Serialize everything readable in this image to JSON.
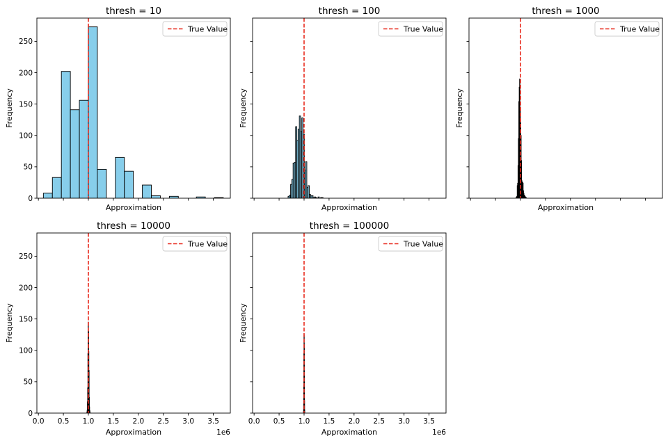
{
  "chart_data": [
    {
      "type": "histogram",
      "title": "thresh = 10",
      "xlabel": "Approximation",
      "ylabel": "Frequency",
      "true_value": 1000000,
      "legend": "True Value",
      "bin_edges": [
        100000,
        280000,
        460000,
        640000,
        820000,
        1000000,
        1180000,
        1360000,
        1540000,
        1720000,
        1900000,
        2080000,
        2260000,
        2440000,
        2620000,
        2800000,
        2980000,
        3160000,
        3340000,
        3520000,
        3700000
      ],
      "counts": [
        8,
        33,
        202,
        141,
        156,
        273,
        46,
        0,
        65,
        43,
        0,
        21,
        4,
        0,
        3,
        0,
        0,
        2,
        0,
        1
      ]
    },
    {
      "type": "histogram",
      "title": "thresh = 100",
      "xlabel": "Approximation",
      "ylabel": "Frequency",
      "true_value": 1000000,
      "legend": "True Value",
      "bin_edges": [
        680000,
        705000,
        730000,
        755000,
        780000,
        805000,
        830000,
        855000,
        880000,
        905000,
        930000,
        955000,
        980000,
        1005000,
        1030000,
        1055000,
        1080000,
        1105000,
        1130000,
        1155000,
        1180000,
        1205000,
        1230000,
        1255000,
        1280000,
        1305000,
        1330000,
        1355000,
        1380000
      ],
      "counts": [
        3,
        5,
        22,
        30,
        56,
        57,
        114,
        92,
        110,
        131,
        106,
        128,
        102,
        45,
        58,
        17,
        20,
        6,
        4,
        4,
        1,
        2,
        1,
        0,
        2,
        0,
        1,
        1
      ]
    },
    {
      "type": "histogram",
      "title": "thresh = 1000",
      "xlabel": "Approximation",
      "ylabel": "Frequency",
      "true_value": 1000000,
      "legend": "True Value",
      "bin_edges": [
        910000,
        918000,
        926000,
        934000,
        942000,
        950000,
        958000,
        966000,
        974000,
        982000,
        990000,
        998000,
        1006000,
        1014000,
        1022000,
        1030000,
        1038000,
        1046000,
        1054000,
        1062000,
        1070000,
        1078000,
        1086000,
        1094000,
        1102000,
        1110000,
        1118000
      ],
      "counts": [
        1,
        2,
        3,
        20,
        24,
        52,
        95,
        154,
        177,
        190,
        142,
        120,
        100,
        60,
        28,
        26,
        25,
        24,
        12,
        8,
        5,
        4,
        3,
        2,
        1,
        1
      ]
    },
    {
      "type": "histogram",
      "title": "thresh = 10000",
      "xlabel": "Approximation",
      "ylabel": "Frequency",
      "true_value": 1000000,
      "legend": "True Value",
      "bin_edges": [
        970000,
        975000,
        980000,
        985000,
        990000,
        995000,
        1000000,
        1005000,
        1010000,
        1015000,
        1020000,
        1025000,
        1030000,
        1035000
      ],
      "counts": [
        2,
        5,
        18,
        40,
        95,
        145,
        130,
        98,
        68,
        25,
        10,
        4,
        2
      ]
    },
    {
      "type": "histogram",
      "title": "thresh = 100000",
      "xlabel": "Approximation",
      "ylabel": "Frequency",
      "true_value": 1000000,
      "legend": "True Value",
      "bin_edges": [
        988000,
        990500,
        993000,
        995500,
        998000,
        1000500,
        1003000,
        1005500,
        1008000,
        1010500
      ],
      "counts": [
        3,
        12,
        45,
        95,
        125,
        110,
        60,
        20,
        5
      ]
    }
  ],
  "axes": {
    "ylim": [
      0,
      287
    ],
    "xlim": [
      -30000,
      3840000
    ],
    "yticks": [
      0,
      50,
      100,
      150,
      200,
      250
    ],
    "xticks": [
      0,
      500000,
      1000000,
      1500000,
      2000000,
      2500000,
      3000000,
      3500000
    ],
    "xtick_labels": [
      "0.0",
      "0.5",
      "1.0",
      "1.5",
      "2.0",
      "2.5",
      "3.0",
      "3.5"
    ],
    "x_offset_label": "1e6"
  },
  "colors": {
    "bar_fill": "#87ceeb",
    "bar_edge": "#000000",
    "true_value_line": "#e8291c",
    "axis": "#000000"
  }
}
